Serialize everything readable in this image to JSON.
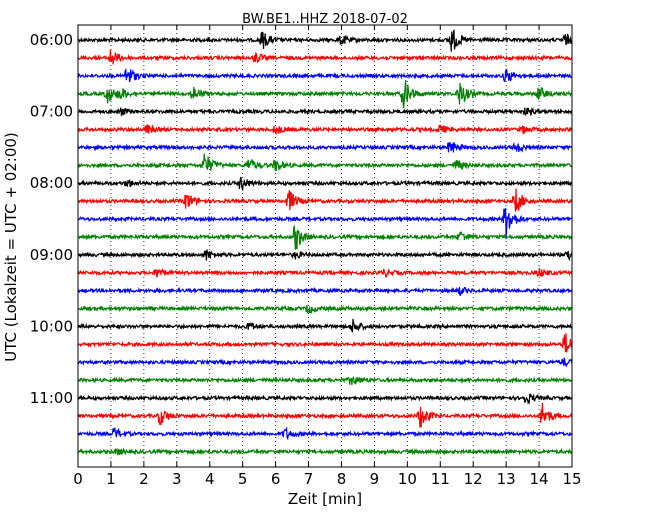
{
  "chart_data": {
    "type": "line",
    "title": "BW.BE1..HHZ 2018-07-02",
    "xlabel": "Zeit  [min]",
    "ylabel": "UTC (Lokalzeit = UTC + 02:00)",
    "xlim": [
      0,
      15
    ],
    "x_ticks": [
      "0",
      "1",
      "2",
      "3",
      "4",
      "5",
      "6",
      "7",
      "8",
      "9",
      "10",
      "11",
      "12",
      "13",
      "14",
      "15"
    ],
    "y_ticks": [
      "06:00",
      "07:00",
      "08:00",
      "09:00",
      "10:00",
      "11:00"
    ],
    "grid": "vertical dotted",
    "colors": [
      "#000000",
      "#ff0000",
      "#0000ff",
      "#008000"
    ],
    "series": [
      {
        "start": "06:00",
        "events": [
          [
            5.6,
            1.0
          ],
          [
            8.0,
            0.5
          ],
          [
            11.35,
            1.5
          ],
          [
            14.8,
            0.6
          ]
        ]
      },
      {
        "start": "06:15",
        "events": [
          [
            1.0,
            1.0
          ],
          [
            5.4,
            0.6
          ]
        ]
      },
      {
        "start": "06:30",
        "events": [
          [
            1.5,
            1.2
          ],
          [
            13.0,
            0.8
          ]
        ]
      },
      {
        "start": "06:45",
        "events": [
          [
            0.9,
            1.0
          ],
          [
            1.3,
            0.6
          ],
          [
            3.5,
            0.8
          ],
          [
            9.9,
            1.8
          ],
          [
            11.6,
            1.4
          ],
          [
            14.0,
            0.8
          ]
        ]
      },
      {
        "start": "07:00",
        "events": [
          [
            1.3,
            0.4
          ],
          [
            13.6,
            0.4
          ]
        ]
      },
      {
        "start": "07:15",
        "events": [
          [
            2.1,
            0.5
          ],
          [
            6.0,
            0.5
          ],
          [
            11.0,
            0.5
          ],
          [
            13.5,
            0.4
          ]
        ]
      },
      {
        "start": "07:30",
        "events": [
          [
            11.3,
            0.8
          ],
          [
            13.3,
            0.6
          ]
        ]
      },
      {
        "start": "07:45",
        "events": [
          [
            3.85,
            1.4
          ],
          [
            5.2,
            0.8
          ],
          [
            6.0,
            0.7
          ],
          [
            11.5,
            0.6
          ]
        ]
      },
      {
        "start": "08:00",
        "events": [
          [
            1.5,
            0.4
          ],
          [
            4.95,
            0.8
          ]
        ]
      },
      {
        "start": "08:15",
        "events": [
          [
            3.3,
            1.0
          ],
          [
            6.4,
            1.3
          ],
          [
            13.3,
            1.4
          ]
        ]
      },
      {
        "start": "08:30",
        "events": [
          [
            13.0,
            2.2
          ]
        ]
      },
      {
        "start": "08:45",
        "events": [
          [
            6.6,
            1.6
          ],
          [
            11.6,
            0.6
          ]
        ]
      },
      {
        "start": "09:00",
        "events": [
          [
            3.9,
            0.6
          ],
          [
            6.6,
            0.4
          ],
          [
            14.9,
            0.6
          ]
        ]
      },
      {
        "start": "09:15",
        "events": [
          [
            2.4,
            0.5
          ],
          [
            9.3,
            0.4
          ],
          [
            14.0,
            0.5
          ]
        ]
      },
      {
        "start": "09:30",
        "events": [
          [
            11.6,
            0.4
          ]
        ]
      },
      {
        "start": "09:45",
        "events": [
          [
            7.0,
            0.5
          ]
        ]
      },
      {
        "start": "10:00",
        "events": [
          [
            5.2,
            0.4
          ],
          [
            8.35,
            0.8
          ]
        ]
      },
      {
        "start": "10:15",
        "events": [
          [
            14.8,
            1.3
          ]
        ]
      },
      {
        "start": "10:30",
        "events": [
          [
            14.75,
            0.4
          ]
        ]
      },
      {
        "start": "10:45",
        "events": [
          [
            8.3,
            0.6
          ]
        ]
      },
      {
        "start": "11:00",
        "events": [
          [
            13.6,
            0.6
          ]
        ]
      },
      {
        "start": "11:15",
        "events": [
          [
            2.5,
            1.0
          ],
          [
            10.4,
            1.4
          ],
          [
            14.1,
            1.4
          ]
        ]
      },
      {
        "start": "11:30",
        "events": [
          [
            1.1,
            0.6
          ],
          [
            6.3,
            0.6
          ]
        ]
      },
      {
        "start": "11:45",
        "events": [
          [
            1.2,
            0.3
          ]
        ]
      }
    ]
  }
}
